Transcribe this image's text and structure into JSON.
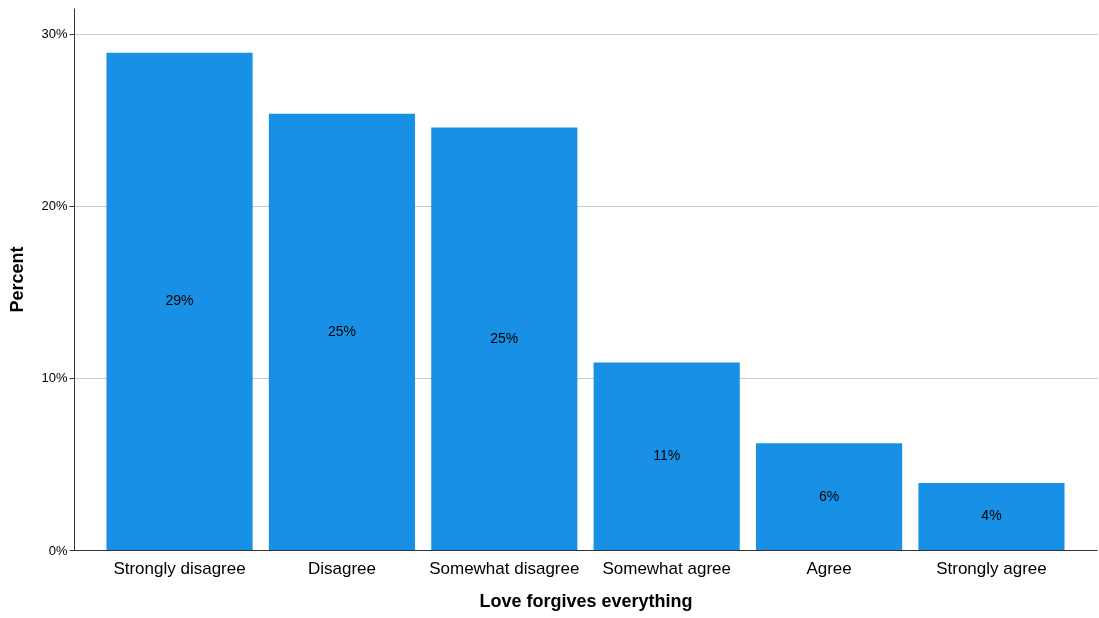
{
  "chart_data": {
    "type": "bar",
    "xlabel": "Love forgives everything",
    "ylabel": "Percent",
    "categories": [
      "Strongly disagree",
      "Disagree",
      "Somewhat disagree",
      "Somewhat agree",
      "Agree",
      "Strongly agree"
    ],
    "values": [
      28.9,
      25.35,
      24.55,
      10.9,
      6.2,
      3.9
    ],
    "value_labels": [
      "29%",
      "25%",
      "25%",
      "11%",
      "6%",
      "4%"
    ],
    "color": "#1790e6",
    "ylim": [
      0,
      31.5
    ],
    "yticks": [
      {
        "value": 0,
        "label": "0%"
      },
      {
        "value": 10,
        "label": "10%"
      },
      {
        "value": 20,
        "label": "20%"
      },
      {
        "value": 30,
        "label": "30%"
      }
    ],
    "grid": "y"
  }
}
